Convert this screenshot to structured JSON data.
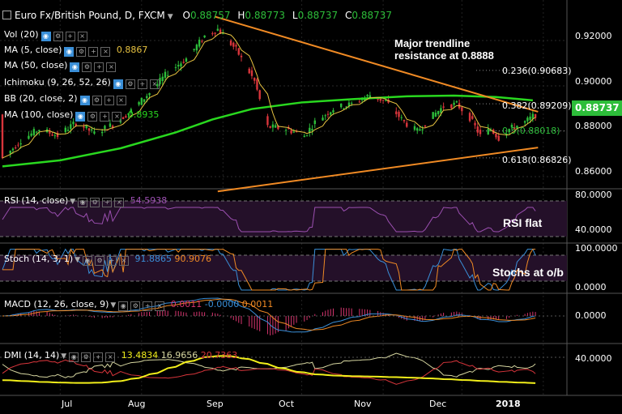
{
  "header": {
    "symbol": "Euro Fx/British Pound, D, FXCM",
    "open_label": "O",
    "open": "0.88757",
    "high_label": "H",
    "high": "0.88773",
    "low_label": "L",
    "low": "0.88737",
    "close_label": "C",
    "close": "0.88737"
  },
  "indicators": {
    "vol": "Vol (20)",
    "ma5": "MA (5, close)",
    "ma5_value": "0.8867",
    "ma50": "MA (50, close)",
    "ichimoku": "Ichimoku (9, 26, 52, 26)",
    "bb": "BB (20, close, 2)",
    "ma100": "MA (100, close)",
    "ma100_value": "0.8935"
  },
  "price_axis": [
    "0.92000",
    "0.90000",
    "0.88000",
    "0.86000"
  ],
  "current_price": "0.88737",
  "fib_levels": [
    {
      "label": "0.236(0.90683)",
      "value": 0.90683
    },
    {
      "label": "0.382(0.89209)",
      "value": 0.89209
    },
    {
      "label": "0.5(0.88018)",
      "value": 0.88018
    },
    {
      "label": "0.618(0.86826)",
      "value": 0.86826
    }
  ],
  "annotations": {
    "trendline_line1": "Major trendline",
    "trendline_line2": "resistance at 0.8888",
    "rsi": "RSI flat",
    "stoch": "Stochs at o/b"
  },
  "rsi": {
    "label": "RSI (14, close)",
    "value": "54.5938",
    "axis": [
      "80.0000",
      "40.0000"
    ]
  },
  "stoch": {
    "label": "Stoch (14, 3, 1)",
    "k": "91.8865",
    "d": "90.9076",
    "axis": [
      "100.0000",
      "0.0000"
    ]
  },
  "macd": {
    "label": "MACD (12, 26, close, 9)",
    "v1": "0.0011",
    "v2": "-0.0000",
    "v3": "0.0011",
    "axis": [
      "0.0000"
    ]
  },
  "dmi": {
    "label": "DMI (14, 14)",
    "adx": "13.4834",
    "plus": "16.9656",
    "minus": "20.7363",
    "axis": [
      "40.0000"
    ]
  },
  "time_axis": [
    "Jul",
    "Aug",
    "Sep",
    "Oct",
    "Nov",
    "Dec",
    "2018"
  ],
  "colors": {
    "up": "#2dbd3a",
    "down": "#d8353b",
    "ma100": "#29d81f",
    "ma5": "#e8c341",
    "trend": "#f08a24",
    "rsi": "#9b4fb0",
    "stoch_k": "#3a8fd8",
    "stoch_d": "#f08a24",
    "macd_line": "#3a8fd8",
    "macd_signal": "#f08a24",
    "macd_hist": "#d8356f",
    "dmi_adx": "#f2ef1a",
    "dmi_plus": "#d6d6a0",
    "dmi_minus": "#d8353b"
  },
  "chart_data": {
    "type": "candlestick",
    "title": "Euro Fx/British Pound, D, FXCM",
    "ylim": [
      0.855,
      0.935
    ],
    "x_range": [
      "2017-06-09",
      "2018-01-10"
    ],
    "trendlines": [
      {
        "from": [
          "2017-08-29",
          0.9305
        ],
        "to": [
          "2017-12-30",
          0.8886
        ]
      },
      {
        "from": [
          "2017-08-30",
          0.8535
        ],
        "to": [
          "2017-12-30",
          0.8728
        ]
      }
    ],
    "ma100_points": [
      [
        "2017-06-09",
        0.8645
      ],
      [
        "2017-07-01",
        0.8672
      ],
      [
        "2017-07-24",
        0.8725
      ],
      [
        "2017-08-14",
        0.8795
      ],
      [
        "2017-08-28",
        0.8852
      ],
      [
        "2017-09-12",
        0.8898
      ],
      [
        "2017-10-01",
        0.8927
      ],
      [
        "2017-10-21",
        0.8942
      ],
      [
        "2017-11-10",
        0.8954
      ],
      [
        "2017-11-28",
        0.8957
      ],
      [
        "2017-12-14",
        0.8951
      ],
      [
        "2017-12-28",
        0.8936
      ]
    ],
    "price_path": [
      [
        "2017-06-09",
        0.868
      ],
      [
        "2017-06-16",
        0.876
      ],
      [
        "2017-06-23",
        0.881
      ],
      [
        "2017-06-30",
        0.878
      ],
      [
        "2017-07-07",
        0.884
      ],
      [
        "2017-07-14",
        0.879
      ],
      [
        "2017-07-21",
        0.883
      ],
      [
        "2017-07-28",
        0.889
      ],
      [
        "2017-08-04",
        0.897
      ],
      [
        "2017-08-11",
        0.906
      ],
      [
        "2017-08-18",
        0.912
      ],
      [
        "2017-08-25",
        0.922
      ],
      [
        "2017-08-30",
        0.925
      ],
      [
        "2017-09-06",
        0.916
      ],
      [
        "2017-09-13",
        0.902
      ],
      [
        "2017-09-18",
        0.882
      ],
      [
        "2017-09-25",
        0.881
      ],
      [
        "2017-10-02",
        0.878
      ],
      [
        "2017-10-06",
        0.884
      ],
      [
        "2017-10-13",
        0.89
      ],
      [
        "2017-10-20",
        0.892
      ],
      [
        "2017-10-27",
        0.896
      ],
      [
        "2017-11-02",
        0.893
      ],
      [
        "2017-11-09",
        0.884
      ],
      [
        "2017-11-14",
        0.88
      ],
      [
        "2017-11-20",
        0.887
      ],
      [
        "2017-11-24",
        0.891
      ],
      [
        "2017-11-29",
        0.892
      ],
      [
        "2017-12-04",
        0.886
      ],
      [
        "2017-12-08",
        0.878
      ],
      [
        "2017-12-12",
        0.881
      ],
      [
        "2017-12-15",
        0.877
      ],
      [
        "2017-12-19",
        0.881
      ],
      [
        "2017-12-25",
        0.884
      ],
      [
        "2017-12-29",
        0.8874
      ]
    ]
  }
}
